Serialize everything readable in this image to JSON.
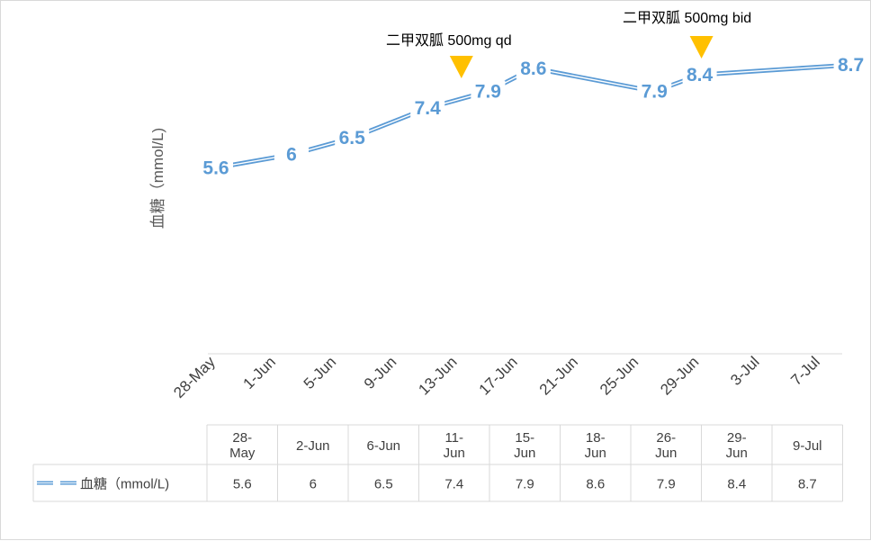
{
  "chart_data": {
    "type": "line",
    "ylabel": "血糖（mmol/L)",
    "x_axis_ticks": [
      "28-May",
      "1-Jun",
      "5-Jun",
      "9-Jun",
      "13-Jun",
      "17-Jun",
      "21-Jun",
      "25-Jun",
      "29-Jun",
      "3-Jul",
      "7-Jul"
    ],
    "x": [
      "28-May",
      "2-Jun",
      "6-Jun",
      "11-Jun",
      "15-Jun",
      "18-Jun",
      "26-Jun",
      "29-Jun",
      "9-Jul"
    ],
    "x_day_index": [
      0,
      5,
      9,
      14,
      18,
      21,
      29,
      32,
      42
    ],
    "series": [
      {
        "name": "血糖（mmol/L)",
        "values": [
          5.6,
          6,
          6.5,
          7.4,
          7.9,
          8.6,
          7.9,
          8.4,
          8.7
        ],
        "color": "#5b9bd5"
      }
    ],
    "data_labels": [
      "5.6",
      "6",
      "6.5",
      "7.4",
      "7.9",
      "8.6",
      "7.9",
      "8.4",
      "8.7"
    ],
    "table_header": [
      "28-\nMay",
      "2-Jun",
      "6-Jun",
      "11-\nJun",
      "15-\nJun",
      "18-\nJun",
      "26-\nJun",
      "29-\nJun",
      "9-Jul"
    ],
    "annotations": [
      {
        "text": "二甲双胍 500mg qd",
        "between": [
          "11-Jun",
          "15-Jun"
        ],
        "marker": "triangle-down",
        "color": "#ffc000"
      },
      {
        "text": "二甲双胍 500mg bid",
        "at": "29-Jun",
        "marker": "triangle-down",
        "color": "#ffc000"
      }
    ],
    "ylim": [
      0,
      9
    ],
    "grid": false,
    "legend": "data-table"
  }
}
